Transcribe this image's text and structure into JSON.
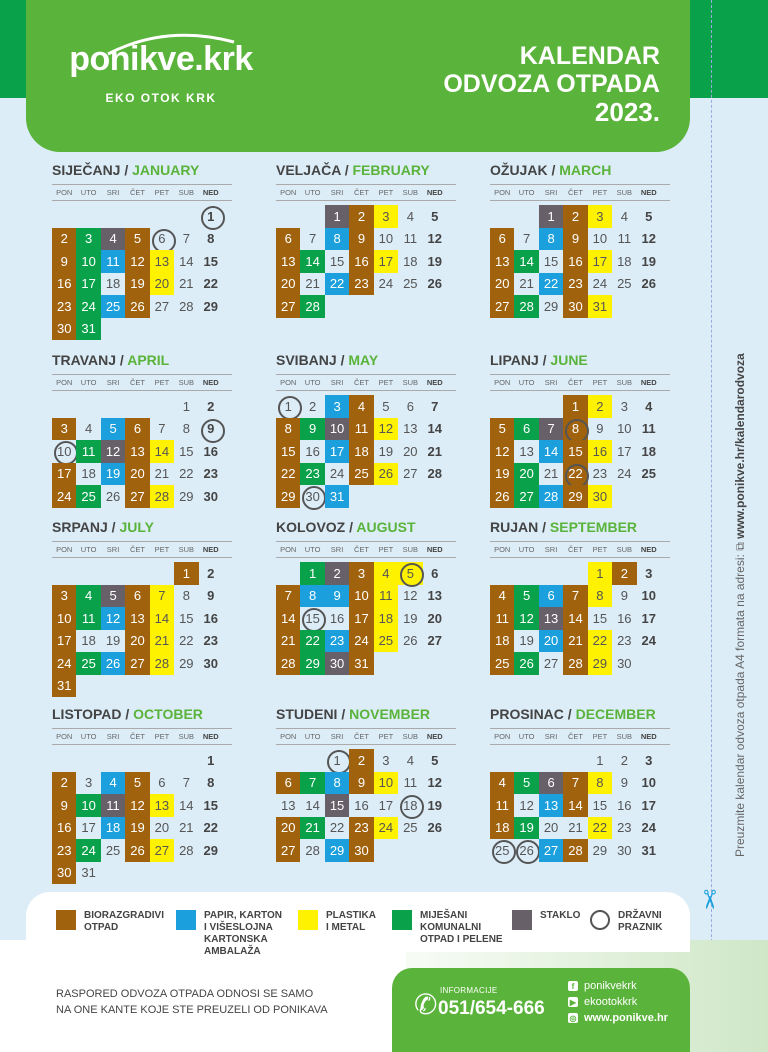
{
  "header": {
    "logo_text": "ponikve.krk",
    "logo_sub": "EKO OTOK KRK",
    "title_line1": "KALENDAR",
    "title_line2": "ODVOZA OTPADA",
    "year": "2023."
  },
  "weekdays": [
    "PON",
    "UTO",
    "SRI",
    "ČET",
    "PET",
    "SUB",
    "NED"
  ],
  "colors": {
    "biorazgradivi": "#a0620d",
    "papir": "#1ba0dd",
    "plastika": "#fff200",
    "mijesani": "#0aa14b",
    "staklo": "#676068",
    "brand_green": "#5ab33a"
  },
  "months": [
    {
      "hr": "SIJEČANJ",
      "en": "JANUARY",
      "offset": 6,
      "days": 31,
      "colors": {
        "b": [
          2,
          5,
          9,
          12,
          16,
          19,
          23,
          26,
          30
        ],
        "g": [
          3,
          10,
          17,
          24,
          31
        ],
        "s": [
          4
        ],
        "p": [
          11,
          25
        ],
        "y": [
          13,
          20
        ]
      },
      "holidays": [
        1,
        6
      ]
    },
    {
      "hr": "VELJAČA",
      "en": "FEBRUARY",
      "offset": 2,
      "days": 28,
      "colors": {
        "b": [
          2,
          6,
          9,
          13,
          16,
          20,
          23,
          27
        ],
        "s": [
          1
        ],
        "y": [
          3,
          17
        ],
        "p": [
          8,
          22
        ],
        "g": [
          14,
          28
        ]
      },
      "holidays": []
    },
    {
      "hr": "OŽUJAK",
      "en": "MARCH",
      "offset": 2,
      "days": 31,
      "colors": {
        "b": [
          2,
          6,
          9,
          13,
          16,
          20,
          23,
          27,
          30
        ],
        "s": [
          1
        ],
        "y": [
          3,
          17,
          31
        ],
        "p": [
          8,
          22
        ],
        "g": [
          14,
          28
        ]
      },
      "holidays": []
    },
    {
      "hr": "TRAVANJ",
      "en": "APRIL",
      "offset": 5,
      "days": 30,
      "colors": {
        "b": [
          3,
          6,
          13,
          17,
          20,
          24,
          27
        ],
        "p": [
          5,
          19
        ],
        "g": [
          11,
          25
        ],
        "s": [
          12
        ],
        "y": [
          14,
          28
        ]
      },
      "holidays": [
        9,
        10
      ]
    },
    {
      "hr": "SVIBANJ",
      "en": "MAY",
      "offset": 0,
      "days": 31,
      "colors": {
        "b": [
          4,
          8,
          11,
          15,
          18,
          22,
          25,
          29
        ],
        "p": [
          3,
          17,
          31
        ],
        "g": [
          9,
          23
        ],
        "s": [
          10
        ],
        "y": [
          12,
          26
        ]
      },
      "holidays": [
        1,
        30
      ]
    },
    {
      "hr": "LIPANJ",
      "en": "JUNE",
      "offset": 3,
      "days": 30,
      "colors": {
        "b": [
          1,
          5,
          8,
          12,
          15,
          19,
          22,
          26,
          29
        ],
        "y": [
          2,
          16,
          30
        ],
        "g": [
          6,
          20,
          27
        ],
        "s": [
          7
        ],
        "p": [
          14,
          28
        ]
      },
      "holidays": [
        8,
        22
      ]
    },
    {
      "hr": "SRPANJ",
      "en": "JULY",
      "offset": 5,
      "days": 31,
      "colors": {
        "b": [
          1,
          3,
          6,
          10,
          13,
          17,
          20,
          24,
          27,
          31
        ],
        "g": [
          4,
          11,
          25
        ],
        "s": [
          5
        ],
        "y": [
          7,
          14,
          21,
          28
        ],
        "p": [
          12,
          26
        ]
      },
      "holidays": []
    },
    {
      "hr": "KOLOVOZ",
      "en": "AUGUST",
      "offset": 1,
      "days": 31,
      "colors": {
        "b": [
          3,
          7,
          10,
          14,
          17,
          21,
          24,
          28,
          31
        ],
        "g": [
          1,
          22,
          29
        ],
        "s": [
          2,
          30
        ],
        "y": [
          4,
          5,
          11,
          18,
          25
        ],
        "p": [
          8,
          9,
          23
        ]
      },
      "holidays": [
        5,
        15
      ]
    },
    {
      "hr": "RUJAN",
      "en": "SEPTEMBER",
      "offset": 4,
      "days": 30,
      "colors": {
        "y": [
          1,
          8,
          22,
          29
        ],
        "b": [
          2,
          4,
          7,
          11,
          14,
          18,
          21,
          25,
          28
        ],
        "g": [
          5,
          12,
          26
        ],
        "p": [
          6,
          20
        ],
        "s": [
          13
        ]
      },
      "holidays": []
    },
    {
      "hr": "LISTOPAD",
      "en": "OCTOBER",
      "offset": 6,
      "days": 31,
      "colors": {
        "b": [
          2,
          5,
          9,
          12,
          16,
          19,
          23,
          26,
          30
        ],
        "p": [
          4,
          18
        ],
        "g": [
          10,
          24
        ],
        "s": [
          11
        ],
        "y": [
          13,
          27
        ]
      },
      "holidays": []
    },
    {
      "hr": "STUDENI",
      "en": "NOVEMBER",
      "offset": 2,
      "days": 30,
      "colors": {
        "b": [
          2,
          6,
          9,
          20,
          23,
          27,
          30
        ],
        "g": [
          7,
          21
        ],
        "p": [
          8,
          29
        ],
        "y": [
          10,
          24
        ],
        "s": [
          15
        ]
      },
      "holidays": [
        1,
        18
      ]
    },
    {
      "hr": "PROSINAC",
      "en": "DECEMBER",
      "offset": 4,
      "days": 31,
      "colors": {
        "b": [
          4,
          7,
          11,
          14,
          18,
          28
        ],
        "g": [
          5,
          19
        ],
        "s": [
          6
        ],
        "y": [
          8,
          22
        ],
        "p": [
          13,
          27
        ]
      },
      "holidays": [
        25,
        26
      ]
    }
  ],
  "legend": {
    "biorazgradivi": [
      "BIORAZGRADIVI",
      "OTPAD"
    ],
    "papir": [
      "PAPIR, KARTON",
      "I VIŠESLOJNA",
      "KARTONSKA",
      "AMBALAŽA"
    ],
    "plastika": [
      "PLASTIKA",
      "I METAL"
    ],
    "mijesani": [
      "MIJEŠANI",
      "KOMUNALNI",
      "OTPAD I PELENE"
    ],
    "staklo": [
      "STAKLO"
    ],
    "praznik": [
      "DRŽAVNI",
      "PRAZNIK"
    ]
  },
  "side_text": "Preuzmite kalendar odvoza otpada A4 formata na adresi:",
  "side_url": "www.ponikve.hr/kalendarodvoza",
  "footer": {
    "note_line1": "RASPORED ODVOZA OTPADA ODNOSI SE SAMO",
    "note_line2": "NA ONE KANTE KOJE STE PREUZELI OD PONIKAVA",
    "info_label": "INFORMACIJE",
    "phone": "051/654-666",
    "facebook": "ponikvekrk",
    "youtube": "ekootokkrk",
    "web": "www.ponikve.hr"
  }
}
